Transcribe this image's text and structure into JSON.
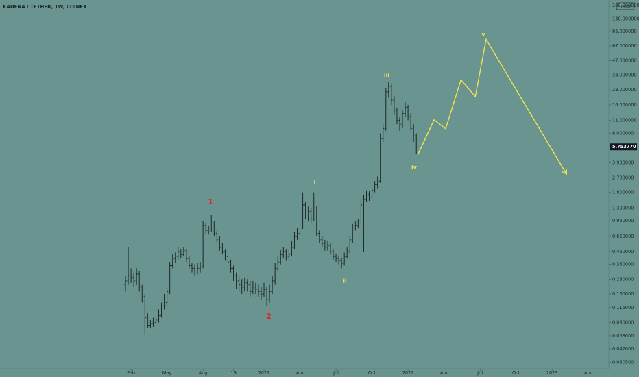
{
  "chart_data": {
    "type": "ohlc",
    "title": "KADENA / TETHER, 1W, COINEX",
    "quote_currency": "USDT",
    "log_scale": true,
    "color": "#1d2828",
    "xlim": [
      -47.3,
      172.5
    ],
    "ylim": [
      0.026,
      205
    ],
    "xticks": [
      {
        "value": 0,
        "label": "Feb"
      },
      {
        "value": 13,
        "label": "May"
      },
      {
        "value": 26,
        "label": "Aug"
      },
      {
        "value": 37,
        "label": "19"
      },
      {
        "value": 48,
        "label": "2021"
      },
      {
        "value": 61,
        "label": "Apr"
      },
      {
        "value": 74,
        "label": "Jul"
      },
      {
        "value": 87,
        "label": "Oct"
      },
      {
        "value": 100,
        "label": "2022"
      },
      {
        "value": 113,
        "label": "Apr"
      },
      {
        "value": 126,
        "label": "Jul"
      },
      {
        "value": 139,
        "label": "Oct"
      },
      {
        "value": 152,
        "label": "2023"
      },
      {
        "value": 165,
        "label": "Apr"
      }
    ],
    "yticks": [
      {
        "value": 180,
        "label": "180.000000"
      },
      {
        "value": 130,
        "label": "130.000000"
      },
      {
        "value": 95,
        "label": "95.000000"
      },
      {
        "value": 67,
        "label": "67.000000"
      },
      {
        "value": 47,
        "label": "47.000000"
      },
      {
        "value": 33,
        "label": "33.000000"
      },
      {
        "value": 23,
        "label": "23.000000"
      },
      {
        "value": 16,
        "label": "16.000000"
      },
      {
        "value": 11,
        "label": "11.000000"
      },
      {
        "value": 8,
        "label": "8.000000"
      },
      {
        "value": 3.9,
        "label": "3.900000"
      },
      {
        "value": 2.7,
        "label": "2.700000"
      },
      {
        "value": 1.9,
        "label": "1.900000"
      },
      {
        "value": 1.3,
        "label": "1.300000"
      },
      {
        "value": 0.95,
        "label": "0.950000"
      },
      {
        "value": 0.65,
        "label": "0.650000"
      },
      {
        "value": 0.45,
        "label": "0.450000"
      },
      {
        "value": 0.33,
        "label": "0.330000"
      },
      {
        "value": 0.23,
        "label": "0.230000"
      },
      {
        "value": 0.16,
        "label": "0.160000"
      },
      {
        "value": 0.115,
        "label": "0.115000"
      },
      {
        "value": 0.08,
        "label": "0.080000"
      },
      {
        "value": 0.058,
        "label": "0.058000"
      },
      {
        "value": 0.042,
        "label": "0.042000"
      },
      {
        "value": 0.0305,
        "label": "0.030500"
      }
    ],
    "last_price": {
      "value": 5.75377,
      "label": "5.753770"
    },
    "x": [
      -2,
      -1,
      0,
      1,
      2,
      3,
      4,
      5,
      6,
      7,
      8,
      9,
      10,
      11,
      12,
      13,
      14,
      15,
      16,
      17,
      18,
      19,
      20,
      21,
      22,
      23,
      24,
      25,
      26,
      27,
      28,
      29,
      30,
      31,
      32,
      33,
      34,
      35,
      36,
      37,
      38,
      39,
      40,
      41,
      42,
      43,
      44,
      45,
      46,
      47,
      48,
      49,
      50,
      51,
      52,
      53,
      54,
      55,
      56,
      57,
      58,
      59,
      60,
      61,
      62,
      63,
      64,
      65,
      66,
      67,
      68,
      69,
      70,
      71,
      72,
      73,
      74,
      75,
      76,
      77,
      78,
      79,
      80,
      81,
      82,
      83,
      84,
      85,
      86,
      87,
      88,
      89,
      90,
      91,
      92,
      93,
      94,
      95,
      96,
      97,
      98,
      99,
      100,
      101,
      102,
      103
    ],
    "open": [
      0.2,
      0.22,
      0.25,
      0.24,
      0.22,
      0.26,
      0.19,
      0.15,
      0.09,
      0.075,
      0.078,
      0.08,
      0.085,
      0.095,
      0.12,
      0.13,
      0.17,
      0.32,
      0.38,
      0.4,
      0.45,
      0.42,
      0.46,
      0.38,
      0.32,
      0.3,
      0.28,
      0.3,
      0.31,
      0.85,
      0.75,
      0.8,
      0.9,
      0.7,
      0.6,
      0.5,
      0.45,
      0.4,
      0.35,
      0.3,
      0.25,
      0.22,
      0.2,
      0.19,
      0.21,
      0.2,
      0.17,
      0.19,
      0.18,
      0.17,
      0.16,
      0.18,
      0.14,
      0.17,
      0.22,
      0.3,
      0.35,
      0.42,
      0.45,
      0.4,
      0.42,
      0.5,
      0.65,
      0.7,
      0.8,
      1.4,
      1.1,
      1.2,
      1.0,
      1.3,
      0.7,
      0.6,
      0.55,
      0.5,
      0.52,
      0.45,
      0.4,
      0.38,
      0.36,
      0.34,
      0.4,
      0.45,
      0.6,
      0.8,
      0.85,
      0.9,
      1.4,
      1.6,
      1.8,
      1.7,
      2.0,
      2.3,
      2.5,
      7.0,
      9.0,
      22,
      25,
      18,
      14,
      11,
      10,
      13,
      15,
      12,
      9,
      7.5
    ],
    "high": [
      0.25,
      0.5,
      0.3,
      0.27,
      0.3,
      0.28,
      0.2,
      0.16,
      0.1,
      0.085,
      0.09,
      0.095,
      0.11,
      0.13,
      0.16,
      0.19,
      0.35,
      0.42,
      0.44,
      0.5,
      0.48,
      0.5,
      0.48,
      0.4,
      0.34,
      0.33,
      0.34,
      0.35,
      0.95,
      0.9,
      0.85,
      1.1,
      0.95,
      0.75,
      0.65,
      0.55,
      0.48,
      0.43,
      0.37,
      0.32,
      0.27,
      0.25,
      0.23,
      0.24,
      0.23,
      0.22,
      0.22,
      0.21,
      0.2,
      0.19,
      0.21,
      0.19,
      0.2,
      0.25,
      0.34,
      0.4,
      0.47,
      0.5,
      0.48,
      0.47,
      0.58,
      0.72,
      0.8,
      0.9,
      1.9,
      1.5,
      1.35,
      1.3,
      1.9,
      1.35,
      0.75,
      0.65,
      0.6,
      0.58,
      0.55,
      0.48,
      0.43,
      0.41,
      0.39,
      0.44,
      0.5,
      0.65,
      0.88,
      0.95,
      1.0,
      1.6,
      1.8,
      2.0,
      1.95,
      2.2,
      2.5,
      2.8,
      8.0,
      10,
      24,
      28,
      27,
      20,
      15,
      12,
      14,
      17,
      16,
      13,
      10,
      8
    ],
    "low": [
      0.17,
      0.2,
      0.21,
      0.19,
      0.2,
      0.17,
      0.13,
      0.06,
      0.07,
      0.07,
      0.072,
      0.075,
      0.08,
      0.09,
      0.11,
      0.12,
      0.16,
      0.3,
      0.34,
      0.37,
      0.38,
      0.4,
      0.35,
      0.3,
      0.27,
      0.25,
      0.26,
      0.27,
      0.3,
      0.7,
      0.68,
      0.72,
      0.65,
      0.55,
      0.46,
      0.42,
      0.36,
      0.32,
      0.27,
      0.22,
      0.18,
      0.17,
      0.16,
      0.17,
      0.17,
      0.15,
      0.16,
      0.16,
      0.15,
      0.14,
      0.15,
      0.12,
      0.13,
      0.16,
      0.2,
      0.28,
      0.33,
      0.38,
      0.36,
      0.37,
      0.4,
      0.48,
      0.6,
      0.66,
      0.78,
      1.0,
      0.95,
      0.9,
      0.95,
      0.65,
      0.55,
      0.5,
      0.46,
      0.46,
      0.42,
      0.37,
      0.35,
      0.33,
      0.3,
      0.32,
      0.38,
      0.43,
      0.56,
      0.75,
      0.8,
      0.85,
      0.45,
      1.5,
      1.55,
      1.6,
      1.9,
      2.1,
      2.4,
      6.5,
      8.5,
      19,
      16,
      12.5,
      10,
      8.5,
      9,
      12,
      11,
      8.5,
      6.5,
      4.8
    ],
    "close": [
      0.22,
      0.25,
      0.24,
      0.22,
      0.26,
      0.19,
      0.15,
      0.09,
      0.075,
      0.078,
      0.08,
      0.085,
      0.095,
      0.12,
      0.13,
      0.17,
      0.32,
      0.38,
      0.4,
      0.45,
      0.42,
      0.46,
      0.38,
      0.32,
      0.3,
      0.28,
      0.3,
      0.31,
      0.85,
      0.75,
      0.8,
      0.9,
      0.7,
      0.6,
      0.5,
      0.45,
      0.4,
      0.35,
      0.3,
      0.25,
      0.22,
      0.2,
      0.19,
      0.21,
      0.2,
      0.17,
      0.19,
      0.18,
      0.17,
      0.16,
      0.18,
      0.14,
      0.17,
      0.22,
      0.3,
      0.35,
      0.42,
      0.45,
      0.4,
      0.42,
      0.5,
      0.65,
      0.7,
      0.8,
      1.4,
      1.1,
      1.2,
      1.0,
      1.3,
      0.7,
      0.6,
      0.55,
      0.5,
      0.52,
      0.45,
      0.4,
      0.38,
      0.36,
      0.34,
      0.4,
      0.45,
      0.6,
      0.8,
      0.85,
      0.9,
      1.4,
      1.6,
      1.8,
      1.7,
      2.0,
      2.3,
      2.5,
      7.0,
      9.0,
      22,
      25,
      18,
      14,
      11,
      10,
      13,
      15,
      12,
      9,
      7.5,
      5.75
    ],
    "projection": {
      "color": "#f2e64a",
      "x": [
        103.5,
        109.4,
        113.6,
        119.1,
        124.3,
        128.2,
        157.2
      ],
      "values": [
        4.74,
        11.1,
        8.95,
        29.4,
        19.6,
        78.7,
        2.97
      ]
    },
    "annotations": [
      {
        "text": "1",
        "color": "#e3211c"
      },
      {
        "text": "2",
        "color": "#e3211c"
      },
      {
        "text": "i",
        "color": "#f2e64a"
      },
      {
        "text": "ii",
        "color": "#f2e64a"
      },
      {
        "text": "iii",
        "color": "#f2e64a"
      },
      {
        "text": "iv",
        "color": "#f2e64a"
      },
      {
        "text": "v",
        "color": "#f2e64a"
      }
    ]
  }
}
